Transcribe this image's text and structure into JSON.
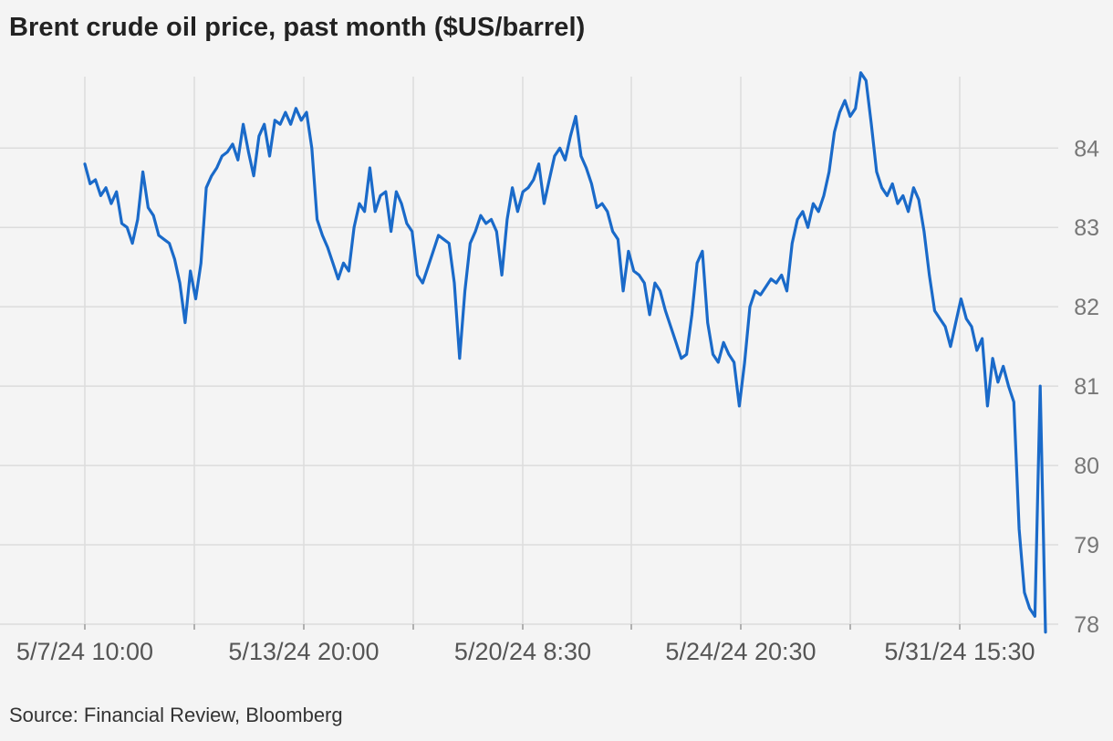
{
  "title": "Brent crude oil price, past month ($US/barrel)",
  "source": "Source: Financial Review, Bloomberg",
  "colors": {
    "line": "#1a6ac9",
    "grid": "#dcdcdc",
    "background": "#f4f4f4"
  },
  "chart_data": {
    "type": "line",
    "title": "Brent crude oil price, past month ($US/barrel)",
    "ylim": [
      78,
      84.9
    ],
    "yticks": [
      78,
      79,
      80,
      81,
      82,
      83,
      84
    ],
    "xlabels": [
      "5/7/24 10:00",
      "5/13/24 20:00",
      "5/20/24 8:30",
      "5/24/24 20:30",
      "5/31/24 15:30"
    ],
    "grid": "on",
    "legend": "none",
    "series": [
      {
        "values": [
          83.8,
          83.55,
          83.6,
          83.4,
          83.5,
          83.3,
          83.45,
          83.05,
          83.0,
          82.8,
          83.1,
          83.7,
          83.25,
          83.15,
          82.9,
          82.85,
          82.8,
          82.6,
          82.3,
          81.8,
          82.45,
          82.1,
          82.55,
          83.5,
          83.65,
          83.75,
          83.9,
          83.95,
          84.05,
          83.85,
          84.3,
          83.95,
          83.65,
          84.15,
          84.3,
          83.9,
          84.35,
          84.3,
          84.45,
          84.3,
          84.5,
          84.35,
          84.45,
          84.0,
          83.1,
          82.9,
          82.75,
          82.55,
          82.35,
          82.55,
          82.45,
          83.0,
          83.3,
          83.2,
          83.75,
          83.2,
          83.4,
          83.45,
          82.95,
          83.45,
          83.3,
          83.05,
          82.95,
          82.4,
          82.3,
          82.5,
          82.7,
          82.9,
          82.85,
          82.8,
          82.3,
          81.35,
          82.2,
          82.8,
          82.95,
          83.15,
          83.05,
          83.1,
          82.95,
          82.4,
          83.1,
          83.5,
          83.2,
          83.45,
          83.5,
          83.6,
          83.8,
          83.3,
          83.6,
          83.9,
          84.0,
          83.85,
          84.15,
          84.4,
          83.9,
          83.75,
          83.55,
          83.25,
          83.3,
          83.2,
          82.95,
          82.85,
          82.2,
          82.7,
          82.45,
          82.4,
          82.3,
          81.9,
          82.3,
          82.2,
          81.95,
          81.75,
          81.55,
          81.35,
          81.4,
          81.9,
          82.55,
          82.7,
          81.8,
          81.4,
          81.3,
          81.55,
          81.4,
          81.3,
          80.75,
          81.3,
          82.0,
          82.2,
          82.15,
          82.25,
          82.35,
          82.3,
          82.4,
          82.2,
          82.8,
          83.1,
          83.2,
          83.0,
          83.3,
          83.2,
          83.4,
          83.7,
          84.2,
          84.45,
          84.6,
          84.4,
          84.5,
          84.95,
          84.85,
          84.3,
          83.7,
          83.5,
          83.4,
          83.55,
          83.3,
          83.4,
          83.2,
          83.5,
          83.35,
          82.95,
          82.4,
          81.95,
          81.85,
          81.75,
          81.5,
          81.8,
          82.1,
          81.85,
          81.75,
          81.45,
          81.6,
          80.75,
          81.35,
          81.05,
          81.25,
          81.0,
          80.8,
          79.2,
          78.4,
          78.2,
          78.1,
          81.0,
          77.9
        ]
      }
    ]
  }
}
